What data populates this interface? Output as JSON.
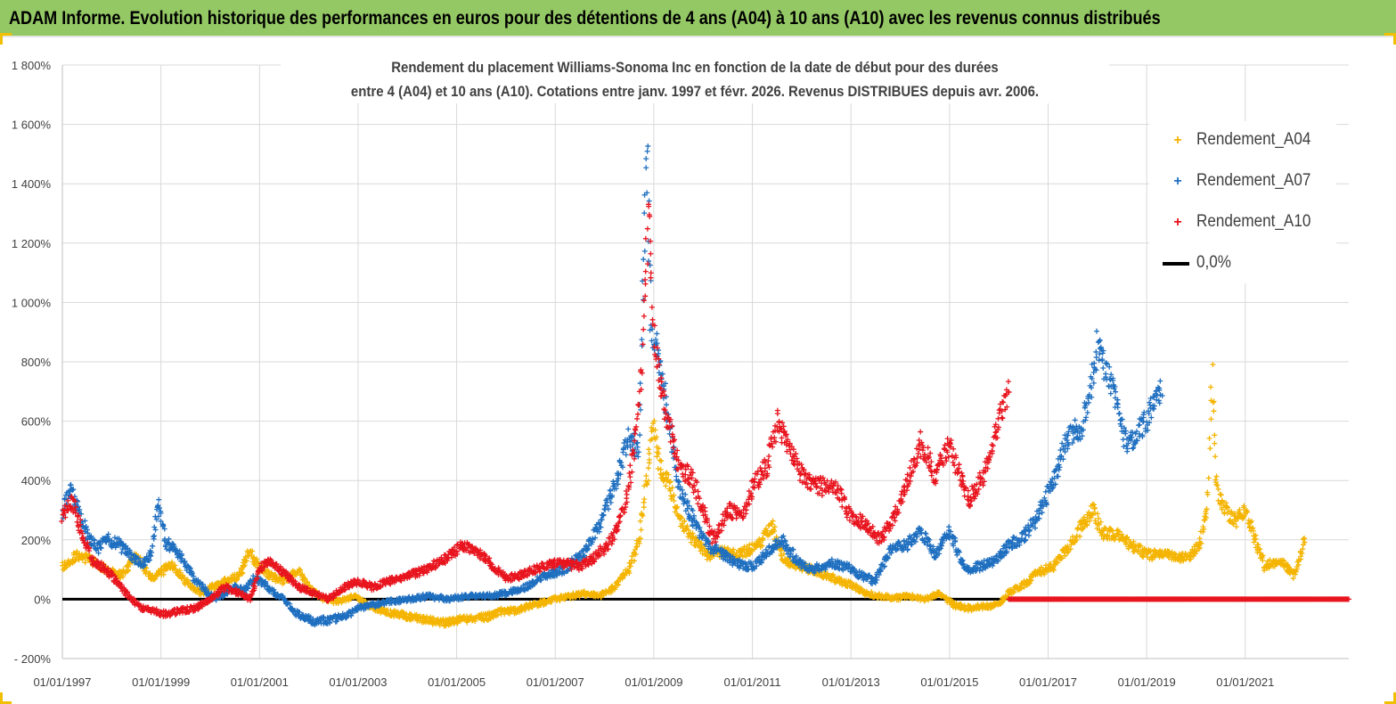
{
  "banner": {
    "text": "ADAM Informe. Evolution historique des performances en euros pour des détentions de 4 ans (A04) à 10 ans (A10) avec les revenus connus distribués"
  },
  "colors": {
    "banner_bg": "#94c864",
    "A04": "#f4b400",
    "A07": "#1f6fc0",
    "A10": "#e8141e",
    "zero": "#000000"
  },
  "chart_data": {
    "type": "scatter",
    "title_line1": "Rendement du placement Williams-Sonoma Inc en fonction de la date de début pour des durées",
    "title_line2": "entre 4 (A04) et 10 ans (A10). Cotations entre janv. 1997 et févr. 2026. Revenus DISTRIBUES depuis avr. 2006.",
    "x_range": [
      1997.0,
      2023.1
    ],
    "ylim": [
      -200,
      1800
    ],
    "y_ticks": [
      -200,
      0,
      200,
      400,
      600,
      800,
      1000,
      1200,
      1400,
      1600,
      1800
    ],
    "y_tick_labels": [
      "- 200%",
      "0%",
      "200%",
      "400%",
      "600%",
      "800%",
      "1 000%",
      "1 200%",
      "1 400%",
      "1 600%",
      "1 800%"
    ],
    "x_ticks": [
      1997,
      1999,
      2001,
      2003,
      2005,
      2007,
      2009,
      2011,
      2013,
      2015,
      2017,
      2019,
      2021
    ],
    "x_tick_labels": [
      "01/01/1997",
      "01/01/1999",
      "01/01/2001",
      "01/01/2003",
      "01/01/2005",
      "01/01/2007",
      "01/01/2009",
      "01/01/2011",
      "01/01/2013",
      "01/01/2015",
      "01/01/2017",
      "01/01/2019",
      "01/01/2021"
    ],
    "grid": true,
    "legend_position": "top-right",
    "series": [
      {
        "name": "Rendement_A04",
        "marker": "+",
        "color": "#f4b400",
        "range": [
          1997.0,
          2022.2
        ],
        "points": [
          [
            1997.0,
            110
          ],
          [
            1997.3,
            150
          ],
          [
            1997.6,
            130
          ],
          [
            1997.9,
            95
          ],
          [
            1998.2,
            80
          ],
          [
            1998.5,
            150
          ],
          [
            1998.8,
            70
          ],
          [
            1999.0,
            90
          ],
          [
            1999.2,
            120
          ],
          [
            1999.5,
            60
          ],
          [
            1999.8,
            20
          ],
          [
            2000.0,
            40
          ],
          [
            2000.3,
            60
          ],
          [
            2000.6,
            80
          ],
          [
            2000.8,
            160
          ],
          [
            2001.0,
            110
          ],
          [
            2001.2,
            80
          ],
          [
            2001.5,
            60
          ],
          [
            2001.8,
            100
          ],
          [
            2002.0,
            40
          ],
          [
            2002.3,
            0
          ],
          [
            2002.6,
            -10
          ],
          [
            2002.9,
            10
          ],
          [
            2003.2,
            -20
          ],
          [
            2003.5,
            -40
          ],
          [
            2003.8,
            -50
          ],
          [
            2004.1,
            -60
          ],
          [
            2004.4,
            -70
          ],
          [
            2004.7,
            -80
          ],
          [
            2005.0,
            -70
          ],
          [
            2005.3,
            -65
          ],
          [
            2005.6,
            -60
          ],
          [
            2005.9,
            -40
          ],
          [
            2006.2,
            -40
          ],
          [
            2006.5,
            -20
          ],
          [
            2006.8,
            -10
          ],
          [
            2007.0,
            0
          ],
          [
            2007.3,
            10
          ],
          [
            2007.6,
            20
          ],
          [
            2007.9,
            10
          ],
          [
            2008.2,
            40
          ],
          [
            2008.5,
            100
          ],
          [
            2008.7,
            200
          ],
          [
            2008.85,
            400
          ],
          [
            2009.0,
            600
          ],
          [
            2009.1,
            450
          ],
          [
            2009.3,
            400
          ],
          [
            2009.5,
            280
          ],
          [
            2009.7,
            220
          ],
          [
            2009.9,
            190
          ],
          [
            2010.1,
            150
          ],
          [
            2010.4,
            160
          ],
          [
            2010.7,
            150
          ],
          [
            2011.0,
            170
          ],
          [
            2011.2,
            200
          ],
          [
            2011.4,
            250
          ],
          [
            2011.6,
            140
          ],
          [
            2011.9,
            110
          ],
          [
            2012.2,
            100
          ],
          [
            2012.5,
            80
          ],
          [
            2012.8,
            60
          ],
          [
            2013.0,
            50
          ],
          [
            2013.3,
            20
          ],
          [
            2013.6,
            10
          ],
          [
            2013.9,
            5
          ],
          [
            2014.2,
            10
          ],
          [
            2014.5,
            0
          ],
          [
            2014.8,
            20
          ],
          [
            2015.1,
            -20
          ],
          [
            2015.4,
            -30
          ],
          [
            2015.7,
            -25
          ],
          [
            2016.0,
            -15
          ],
          [
            2016.2,
            20
          ],
          [
            2016.5,
            50
          ],
          [
            2016.8,
            90
          ],
          [
            2017.1,
            110
          ],
          [
            2017.4,
            170
          ],
          [
            2017.7,
            250
          ],
          [
            2017.9,
            300
          ],
          [
            2018.1,
            220
          ],
          [
            2018.4,
            220
          ],
          [
            2018.7,
            180
          ],
          [
            2019.0,
            150
          ],
          [
            2019.3,
            150
          ],
          [
            2019.6,
            140
          ],
          [
            2019.9,
            150
          ],
          [
            2020.1,
            200
          ],
          [
            2020.25,
            350
          ],
          [
            2020.32,
            790
          ],
          [
            2020.4,
            420
          ],
          [
            2020.5,
            320
          ],
          [
            2020.8,
            260
          ],
          [
            2021.0,
            300
          ],
          [
            2021.2,
            200
          ],
          [
            2021.4,
            110
          ],
          [
            2021.7,
            130
          ],
          [
            2022.0,
            80
          ],
          [
            2022.2,
            200
          ]
        ]
      },
      {
        "name": "Rendement_A07",
        "marker": "+",
        "color": "#1f6fc0",
        "range": [
          1997.0,
          2019.3
        ],
        "points": [
          [
            1997.0,
            290
          ],
          [
            1997.15,
            370
          ],
          [
            1997.3,
            310
          ],
          [
            1997.5,
            220
          ],
          [
            1997.7,
            170
          ],
          [
            1997.9,
            200
          ],
          [
            1998.1,
            190
          ],
          [
            1998.4,
            150
          ],
          [
            1998.6,
            110
          ],
          [
            1998.8,
            150
          ],
          [
            1998.95,
            320
          ],
          [
            1999.1,
            190
          ],
          [
            1999.3,
            170
          ],
          [
            1999.5,
            120
          ],
          [
            1999.7,
            60
          ],
          [
            1999.9,
            30
          ],
          [
            2000.1,
            0
          ],
          [
            2000.3,
            20
          ],
          [
            2000.5,
            40
          ],
          [
            2000.7,
            30
          ],
          [
            2000.9,
            70
          ],
          [
            2001.1,
            50
          ],
          [
            2001.3,
            20
          ],
          [
            2001.5,
            0
          ],
          [
            2001.7,
            -40
          ],
          [
            2001.9,
            -60
          ],
          [
            2002.1,
            -75
          ],
          [
            2002.4,
            -70
          ],
          [
            2002.7,
            -60
          ],
          [
            2003.0,
            -30
          ],
          [
            2003.3,
            -20
          ],
          [
            2003.6,
            -10
          ],
          [
            2004.0,
            0
          ],
          [
            2004.4,
            10
          ],
          [
            2004.8,
            0
          ],
          [
            2005.2,
            10
          ],
          [
            2005.6,
            10
          ],
          [
            2006.0,
            20
          ],
          [
            2006.4,
            40
          ],
          [
            2006.8,
            80
          ],
          [
            2007.2,
            100
          ],
          [
            2007.6,
            160
          ],
          [
            2007.9,
            250
          ],
          [
            2008.2,
            380
          ],
          [
            2008.5,
            550
          ],
          [
            2008.7,
            500
          ],
          [
            2008.85,
            1540
          ],
          [
            2008.95,
            900
          ],
          [
            2009.1,
            800
          ],
          [
            2009.3,
            620
          ],
          [
            2009.5,
            380
          ],
          [
            2009.7,
            300
          ],
          [
            2009.9,
            240
          ],
          [
            2010.1,
            180
          ],
          [
            2010.4,
            150
          ],
          [
            2010.7,
            120
          ],
          [
            2011.0,
            110
          ],
          [
            2011.3,
            160
          ],
          [
            2011.6,
            200
          ],
          [
            2011.9,
            130
          ],
          [
            2012.2,
            100
          ],
          [
            2012.6,
            120
          ],
          [
            2012.9,
            110
          ],
          [
            2013.2,
            80
          ],
          [
            2013.5,
            60
          ],
          [
            2013.8,
            170
          ],
          [
            2014.1,
            180
          ],
          [
            2014.4,
            230
          ],
          [
            2014.7,
            150
          ],
          [
            2015.0,
            230
          ],
          [
            2015.3,
            100
          ],
          [
            2015.6,
            110
          ],
          [
            2015.9,
            130
          ],
          [
            2016.2,
            180
          ],
          [
            2016.5,
            210
          ],
          [
            2016.8,
            280
          ],
          [
            2017.1,
            400
          ],
          [
            2017.4,
            550
          ],
          [
            2017.7,
            580
          ],
          [
            2018.0,
            850
          ],
          [
            2018.2,
            770
          ],
          [
            2018.4,
            650
          ],
          [
            2018.6,
            520
          ],
          [
            2018.9,
            580
          ],
          [
            2019.1,
            640
          ],
          [
            2019.3,
            700
          ]
        ]
      },
      {
        "name": "Rendement_A10",
        "marker": "+",
        "color": "#e8141e",
        "range": [
          1997.0,
          2016.2
        ],
        "points": [
          [
            1997.0,
            280
          ],
          [
            1997.2,
            330
          ],
          [
            1997.4,
            220
          ],
          [
            1997.6,
            130
          ],
          [
            1997.8,
            110
          ],
          [
            1998.0,
            80
          ],
          [
            1998.2,
            40
          ],
          [
            1998.4,
            0
          ],
          [
            1998.6,
            -30
          ],
          [
            1998.8,
            -40
          ],
          [
            1999.1,
            -50
          ],
          [
            1999.4,
            -40
          ],
          [
            1999.7,
            -30
          ],
          [
            2000.0,
            0
          ],
          [
            2000.3,
            40
          ],
          [
            2000.6,
            20
          ],
          [
            2000.8,
            0
          ],
          [
            2001.0,
            100
          ],
          [
            2001.2,
            130
          ],
          [
            2001.5,
            90
          ],
          [
            2001.8,
            40
          ],
          [
            2002.1,
            20
          ],
          [
            2002.4,
            0
          ],
          [
            2002.7,
            40
          ],
          [
            2003.0,
            60
          ],
          [
            2003.3,
            40
          ],
          [
            2003.6,
            60
          ],
          [
            2003.9,
            70
          ],
          [
            2004.2,
            90
          ],
          [
            2004.5,
            110
          ],
          [
            2004.8,
            140
          ],
          [
            2005.1,
            180
          ],
          [
            2005.4,
            160
          ],
          [
            2005.7,
            120
          ],
          [
            2006.0,
            70
          ],
          [
            2006.3,
            80
          ],
          [
            2006.6,
            100
          ],
          [
            2006.9,
            120
          ],
          [
            2007.2,
            120
          ],
          [
            2007.5,
            110
          ],
          [
            2007.8,
            140
          ],
          [
            2008.1,
            190
          ],
          [
            2008.4,
            300
          ],
          [
            2008.6,
            500
          ],
          [
            2008.75,
            750
          ],
          [
            2008.9,
            1340
          ],
          [
            2009.0,
            900
          ],
          [
            2009.15,
            700
          ],
          [
            2009.3,
            600
          ],
          [
            2009.5,
            450
          ],
          [
            2009.8,
            400
          ],
          [
            2010.0,
            300
          ],
          [
            2010.2,
            200
          ],
          [
            2010.5,
            300
          ],
          [
            2010.8,
            280
          ],
          [
            2011.0,
            380
          ],
          [
            2011.3,
            450
          ],
          [
            2011.5,
            600
          ],
          [
            2011.8,
            480
          ],
          [
            2012.1,
            400
          ],
          [
            2012.4,
            380
          ],
          [
            2012.7,
            370
          ],
          [
            2013.0,
            280
          ],
          [
            2013.3,
            250
          ],
          [
            2013.6,
            200
          ],
          [
            2013.9,
            280
          ],
          [
            2014.2,
            420
          ],
          [
            2014.4,
            530
          ],
          [
            2014.7,
            420
          ],
          [
            2015.0,
            520
          ],
          [
            2015.2,
            420
          ],
          [
            2015.4,
            330
          ],
          [
            2015.7,
            420
          ],
          [
            2016.0,
            600
          ],
          [
            2016.2,
            700
          ]
        ]
      }
    ],
    "zero_line": {
      "name": "0,0%",
      "y": 0,
      "color": "#000000"
    },
    "a10_zero_band": {
      "from": 2016.2,
      "to": 2023.1,
      "y": 0
    }
  }
}
